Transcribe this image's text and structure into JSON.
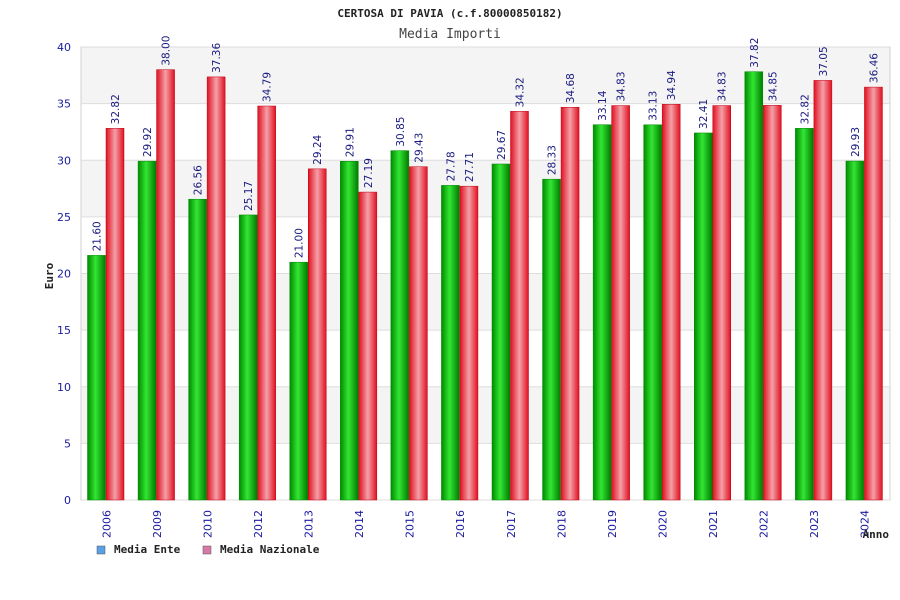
{
  "chart_data": {
    "type": "bar",
    "title": "CERTOSA DI PAVIA (c.f.80000850182)",
    "subtitle": "Media Importi",
    "xlabel": "Anno",
    "ylabel": "Euro",
    "ylim": [
      0,
      40
    ],
    "yticks": [
      0,
      5,
      10,
      15,
      20,
      25,
      30,
      35,
      40
    ],
    "grid": true,
    "legend_position": "bottom-left",
    "categories": [
      "2006",
      "2009",
      "2010",
      "2012",
      "2013",
      "2014",
      "2015",
      "2016",
      "2017",
      "2018",
      "2019",
      "2020",
      "2021",
      "2022",
      "2023",
      "2024"
    ],
    "value_labels": [
      [
        "21.60",
        "32.82"
      ],
      [
        "29.92",
        "38.00"
      ],
      [
        "26.56",
        "37.36"
      ],
      [
        "25.17",
        "34.79"
      ],
      [
        "21.00",
        "29.24"
      ],
      [
        "29.91",
        "27.19"
      ],
      [
        "30.85",
        "29.43"
      ],
      [
        "27.78",
        "27.71"
      ],
      [
        "29.67",
        "34.32"
      ],
      [
        "28.33",
        "34.68"
      ],
      [
        "33.14",
        "34.83"
      ],
      [
        "33.13",
        "34.94"
      ],
      [
        "32.41",
        "34.83"
      ],
      [
        "37.82",
        "34.85"
      ],
      [
        "32.82",
        "37.05"
      ],
      [
        "29.93",
        "36.46"
      ]
    ],
    "series": [
      {
        "name": "Media Ente",
        "color": "#00b000",
        "legend_color": "#5aa0e6",
        "values": [
          21.6,
          29.92,
          26.56,
          25.17,
          21.0,
          29.91,
          30.85,
          27.78,
          29.67,
          28.33,
          33.14,
          33.13,
          32.41,
          37.82,
          32.82,
          29.93
        ]
      },
      {
        "name": "Media Nazionale",
        "color": "#e8202a",
        "legend_color": "#d878a8",
        "values": [
          32.82,
          38.0,
          37.36,
          34.79,
          29.24,
          27.19,
          29.43,
          27.71,
          34.32,
          34.68,
          34.83,
          34.94,
          34.83,
          34.85,
          37.05,
          36.46
        ]
      }
    ]
  }
}
